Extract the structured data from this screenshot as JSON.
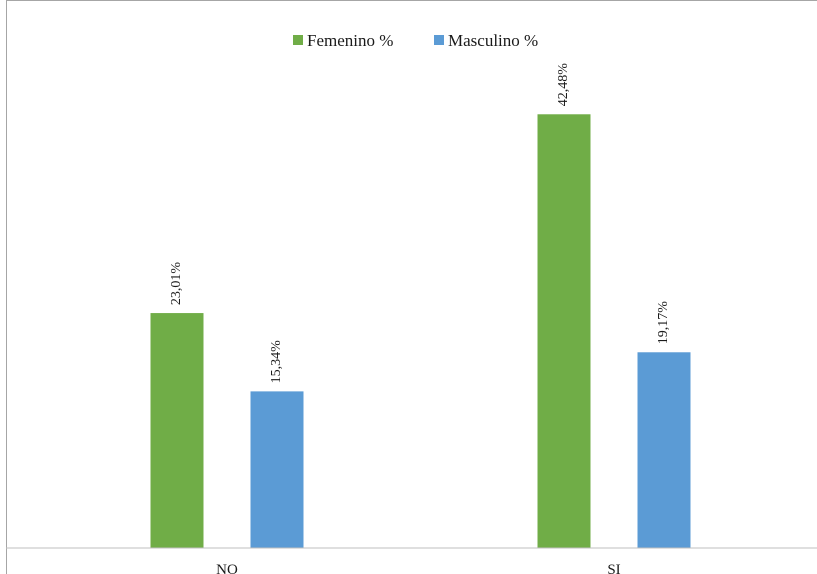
{
  "chart_data": {
    "type": "bar",
    "title": "",
    "xlabel": "",
    "ylabel": "",
    "categories": [
      "NO",
      "SI"
    ],
    "series": [
      {
        "name": "Femenino %",
        "values": [
          23.01,
          42.48
        ],
        "labels": [
          "23,01%",
          "42,48%"
        ],
        "color": "#70ad47"
      },
      {
        "name": "Masculino %",
        "values": [
          15.34,
          19.17
        ],
        "labels": [
          "15,34%",
          "19,17%"
        ],
        "color": "#5b9bd5"
      }
    ],
    "ylim": [
      0,
      50
    ],
    "grid": false,
    "legend_position": "top-center",
    "axis_color": "#bfbfbf"
  }
}
